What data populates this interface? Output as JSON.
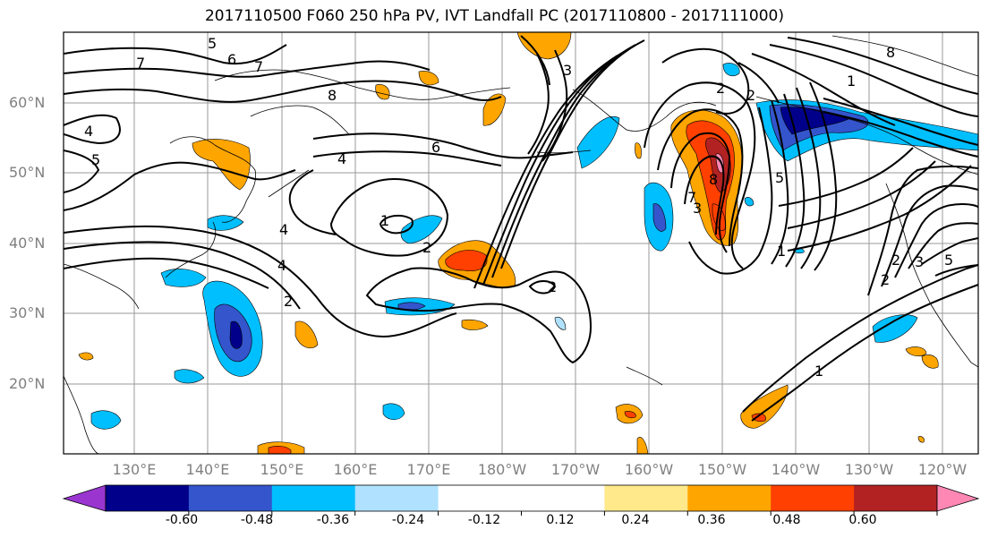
{
  "title": "2017110500 F060 250 hPa PV, IVT Landfall PC (2017110800 - 2017111000)",
  "lat_labels": [
    "60°N",
    "50°N",
    "40°N",
    "30°N",
    "20°N"
  ],
  "lon_labels": [
    "130°E",
    "140°E",
    "150°E",
    "160°E",
    "170°E",
    "180°W",
    "170°W",
    "160°W",
    "150°W",
    "140°W",
    "130°W",
    "120°W"
  ],
  "colorbar": {
    "colors": [
      "#9a35d0",
      "#00008b",
      "#3455cc",
      "#00bfff",
      "#b0e2ff",
      "#ffffff",
      "#ffffff",
      "#ffe98a",
      "#ffa500",
      "#ff4000",
      "#b22222",
      "#ff87b4"
    ],
    "tick_labels": [
      "-0.60",
      "-0.48",
      "-0.36",
      "-0.24",
      "-0.12",
      "0.12",
      "0.24",
      "0.36",
      "0.48",
      "0.60"
    ]
  },
  "contour_labels": [
    "5",
    "6",
    "7",
    "7",
    "8",
    "4",
    "5",
    "4",
    "6",
    "4",
    "1",
    "2",
    "4",
    "2",
    "2",
    "3",
    "2",
    "2",
    "8",
    "5",
    "7",
    "3",
    "1",
    "8",
    "1",
    "2",
    "3",
    "1",
    "5",
    "2"
  ]
}
